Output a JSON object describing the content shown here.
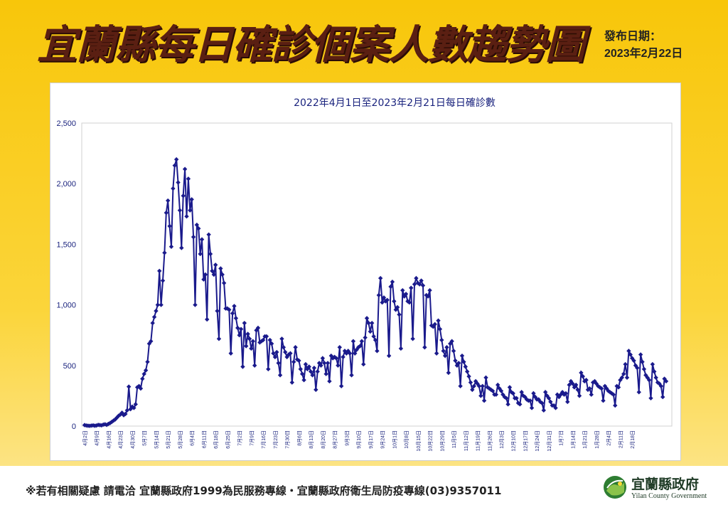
{
  "header": {
    "title": "宜蘭縣每日確診個案人數趨勢圖",
    "release_label": "發布日期：",
    "release_date": "2023年2月22日"
  },
  "footer": {
    "note": "※若有相關疑慮 請電洽  宜蘭縣政府1999為民服務專線・宜蘭縣政府衛生局防疫專線(03)9357011",
    "logo_name": "宜蘭縣政府",
    "logo_english": "Yilan County Government",
    "logo_icon": "yilan-county-emblem"
  },
  "colors": {
    "line": "#1a1a8c",
    "background_top": "#f8c60a",
    "title": "#5a1f12"
  },
  "chart_data": {
    "type": "line",
    "title": "2022年4月1日至2023年2月21日每日確診數",
    "xlabel": "",
    "ylabel": "",
    "ylim": [
      0,
      2500
    ],
    "yticks": [
      "0",
      "500",
      "1,000",
      "1,500",
      "2,000",
      "2,500"
    ],
    "grid": false,
    "x_start": "2022-04-02",
    "x_end": "2023-02-21",
    "xtick_labels": [
      "4月2日",
      "4月9日",
      "4月16日",
      "4月23日",
      "4月30日",
      "5月7日",
      "5月14日",
      "5月21日",
      "5月28日",
      "6月4日",
      "6月11日",
      "6月18日",
      "6月25日",
      "7月2日",
      "7月9日",
      "7月16日",
      "7月23日",
      "7月30日",
      "8月6日",
      "8月13日",
      "8月20日",
      "8月27日",
      "9月3日",
      "9月10日",
      "9月17日",
      "9月24日",
      "10月1日",
      "10月8日",
      "10月15日",
      "10月22日",
      "10月29日",
      "11月5日",
      "11月12日",
      "11月19日",
      "11月26日",
      "12月3日",
      "12月10日",
      "12月17日",
      "12月24日",
      "12月31日",
      "1月7日",
      "1月14日",
      "1月21日",
      "1月28日",
      "2月4日",
      "2月11日",
      "2月18日"
    ],
    "series": [
      {
        "values": [
          8,
          5,
          3,
          2,
          4,
          6,
          3,
          5,
          10,
          8,
          6,
          12,
          15,
          10,
          18,
          25,
          35,
          45,
          55,
          70,
          85,
          95,
          110,
          90,
          100,
          130,
          325,
          140,
          160,
          150,
          180,
          320,
          330,
          310,
          390,
          430,
          460,
          530,
          680,
          700,
          850,
          900,
          950,
          1000,
          1280,
          1000,
          1200,
          1430,
          1760,
          1860,
          1650,
          1480,
          1960,
          2150,
          2200,
          2010,
          1780,
          1470,
          1900,
          2120,
          1730,
          2040,
          1780,
          1870,
          1560,
          1000,
          1660,
          1630,
          1420,
          1540,
          1210,
          1250,
          880,
          1580,
          1420,
          1280,
          1250,
          1330,
          950,
          720,
          1300,
          1250,
          1180,
          970,
          970,
          960,
          600,
          930,
          990,
          890,
          810,
          750,
          800,
          490,
          850,
          660,
          760,
          720,
          640,
          700,
          500,
          790,
          810,
          690,
          700,
          710,
          740,
          740,
          470,
          710,
          680,
          600,
          570,
          610,
          520,
          420,
          720,
          650,
          610,
          570,
          590,
          600,
          360,
          530,
          650,
          550,
          540,
          470,
          430,
          380,
          510,
          470,
          490,
          450,
          420,
          480,
          300,
          450,
          520,
          500,
          560,
          520,
          430,
          520,
          370,
          580,
          560,
          570,
          560,
          500,
          650,
          330,
          570,
          620,
          600,
          620,
          600,
          420,
          700,
          600,
          630,
          650,
          660,
          700,
          510,
          730,
          890,
          850,
          780,
          850,
          740,
          710,
          620,
          1080,
          1220,
          1020,
          1060,
          1030,
          1040,
          580,
          1150,
          1190,
          1030,
          960,
          980,
          920,
          640,
          1120,
          1070,
          1090,
          1030,
          1020,
          1140,
          720,
          1170,
          1220,
          1180,
          1170,
          1200,
          1160,
          650,
          1080,
          1070,
          1120,
          830,
          820,
          840,
          600,
          870,
          800,
          710,
          620,
          580,
          650,
          440,
          680,
          700,
          620,
          540,
          500,
          520,
          330,
          580,
          530,
          490,
          450,
          410,
          360,
          300,
          330,
          370,
          350,
          330,
          250,
          330,
          210,
          400,
          320,
          310,
          300,
          290,
          260,
          260,
          340,
          310,
          290,
          260,
          240,
          230,
          180,
          320,
          280,
          270,
          230,
          230,
          190,
          180,
          280,
          250,
          240,
          220,
          210,
          210,
          150,
          270,
          240,
          220,
          220,
          200,
          190,
          130,
          280,
          250,
          230,
          200,
          170,
          170,
          150,
          260,
          240,
          260,
          280,
          260,
          270,
          200,
          340,
          370,
          350,
          320,
          340,
          300,
          250,
          440,
          410,
          370,
          380,
          300,
          310,
          260,
          360,
          370,
          350,
          330,
          320,
          310,
          210,
          330,
          310,
          290,
          280,
          270,
          260,
          170,
          330,
          320,
          380,
          400,
          430,
          510,
          400,
          620,
          590,
          560,
          540,
          500,
          480,
          280,
          590,
          530,
          470,
          420,
          400,
          380,
          230,
          510,
          450,
          400,
          360,
          350,
          330,
          240,
          390,
          370
        ]
      }
    ]
  }
}
